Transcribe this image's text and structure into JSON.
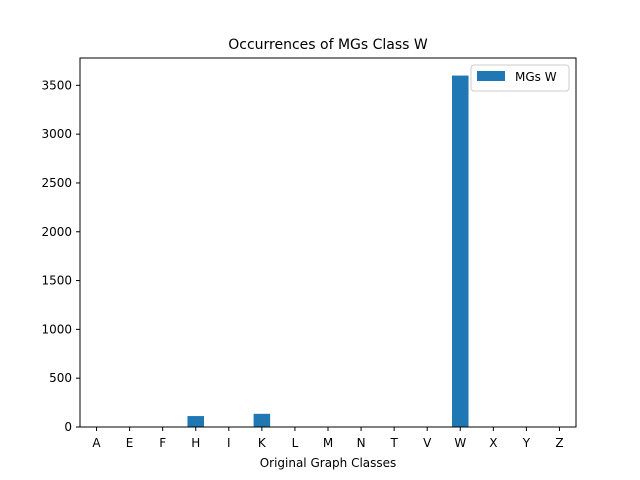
{
  "chart_data": {
    "type": "bar",
    "title": "Occurrences of MGs Class W",
    "xlabel": "Original Graph Classes",
    "ylabel": "",
    "categories": [
      "A",
      "E",
      "F",
      "H",
      "I",
      "K",
      "L",
      "M",
      "N",
      "T",
      "V",
      "W",
      "X",
      "Y",
      "Z"
    ],
    "series": [
      {
        "name": "MGs W",
        "color": "#1f77b4",
        "values": [
          0,
          0,
          0,
          112,
          0,
          135,
          0,
          0,
          0,
          0,
          0,
          3600,
          0,
          0,
          0
        ]
      }
    ],
    "ylim": [
      0,
      3780
    ],
    "yticks": [
      0,
      500,
      1000,
      1500,
      2000,
      2500,
      3000,
      3500
    ],
    "grid": false,
    "legend_position": "top-right"
  }
}
